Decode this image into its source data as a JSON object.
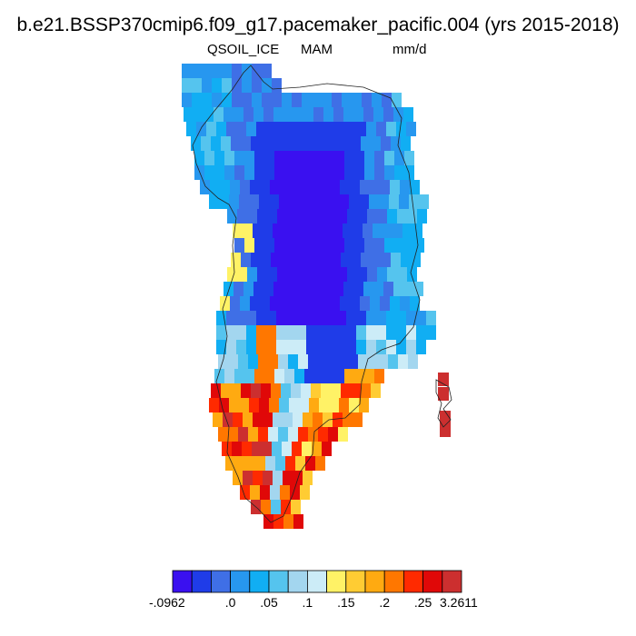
{
  "title": "b.e21.BSSP370cmip6.f09_g17.pacemaker_pacific.004 (yrs 2015-2018)",
  "variable": "QSOIL_ICE",
  "season": "MAM",
  "units": "mm/d",
  "colorbar": {
    "colors": [
      "#3a10f0",
      "#1f3ce8",
      "#3f6fe6",
      "#2797ef",
      "#11aef3",
      "#55c4ee",
      "#a3d6ef",
      "#ccecf7",
      "#fff266",
      "#ffcc33",
      "#ffaa11",
      "#ff7700",
      "#ff2a00",
      "#e00808",
      "#cc2f2f"
    ],
    "tick_labels": [
      "-.0962",
      ".0",
      ".05",
      ".1",
      ".15",
      ".2",
      ".25",
      "3.2611"
    ]
  }
}
